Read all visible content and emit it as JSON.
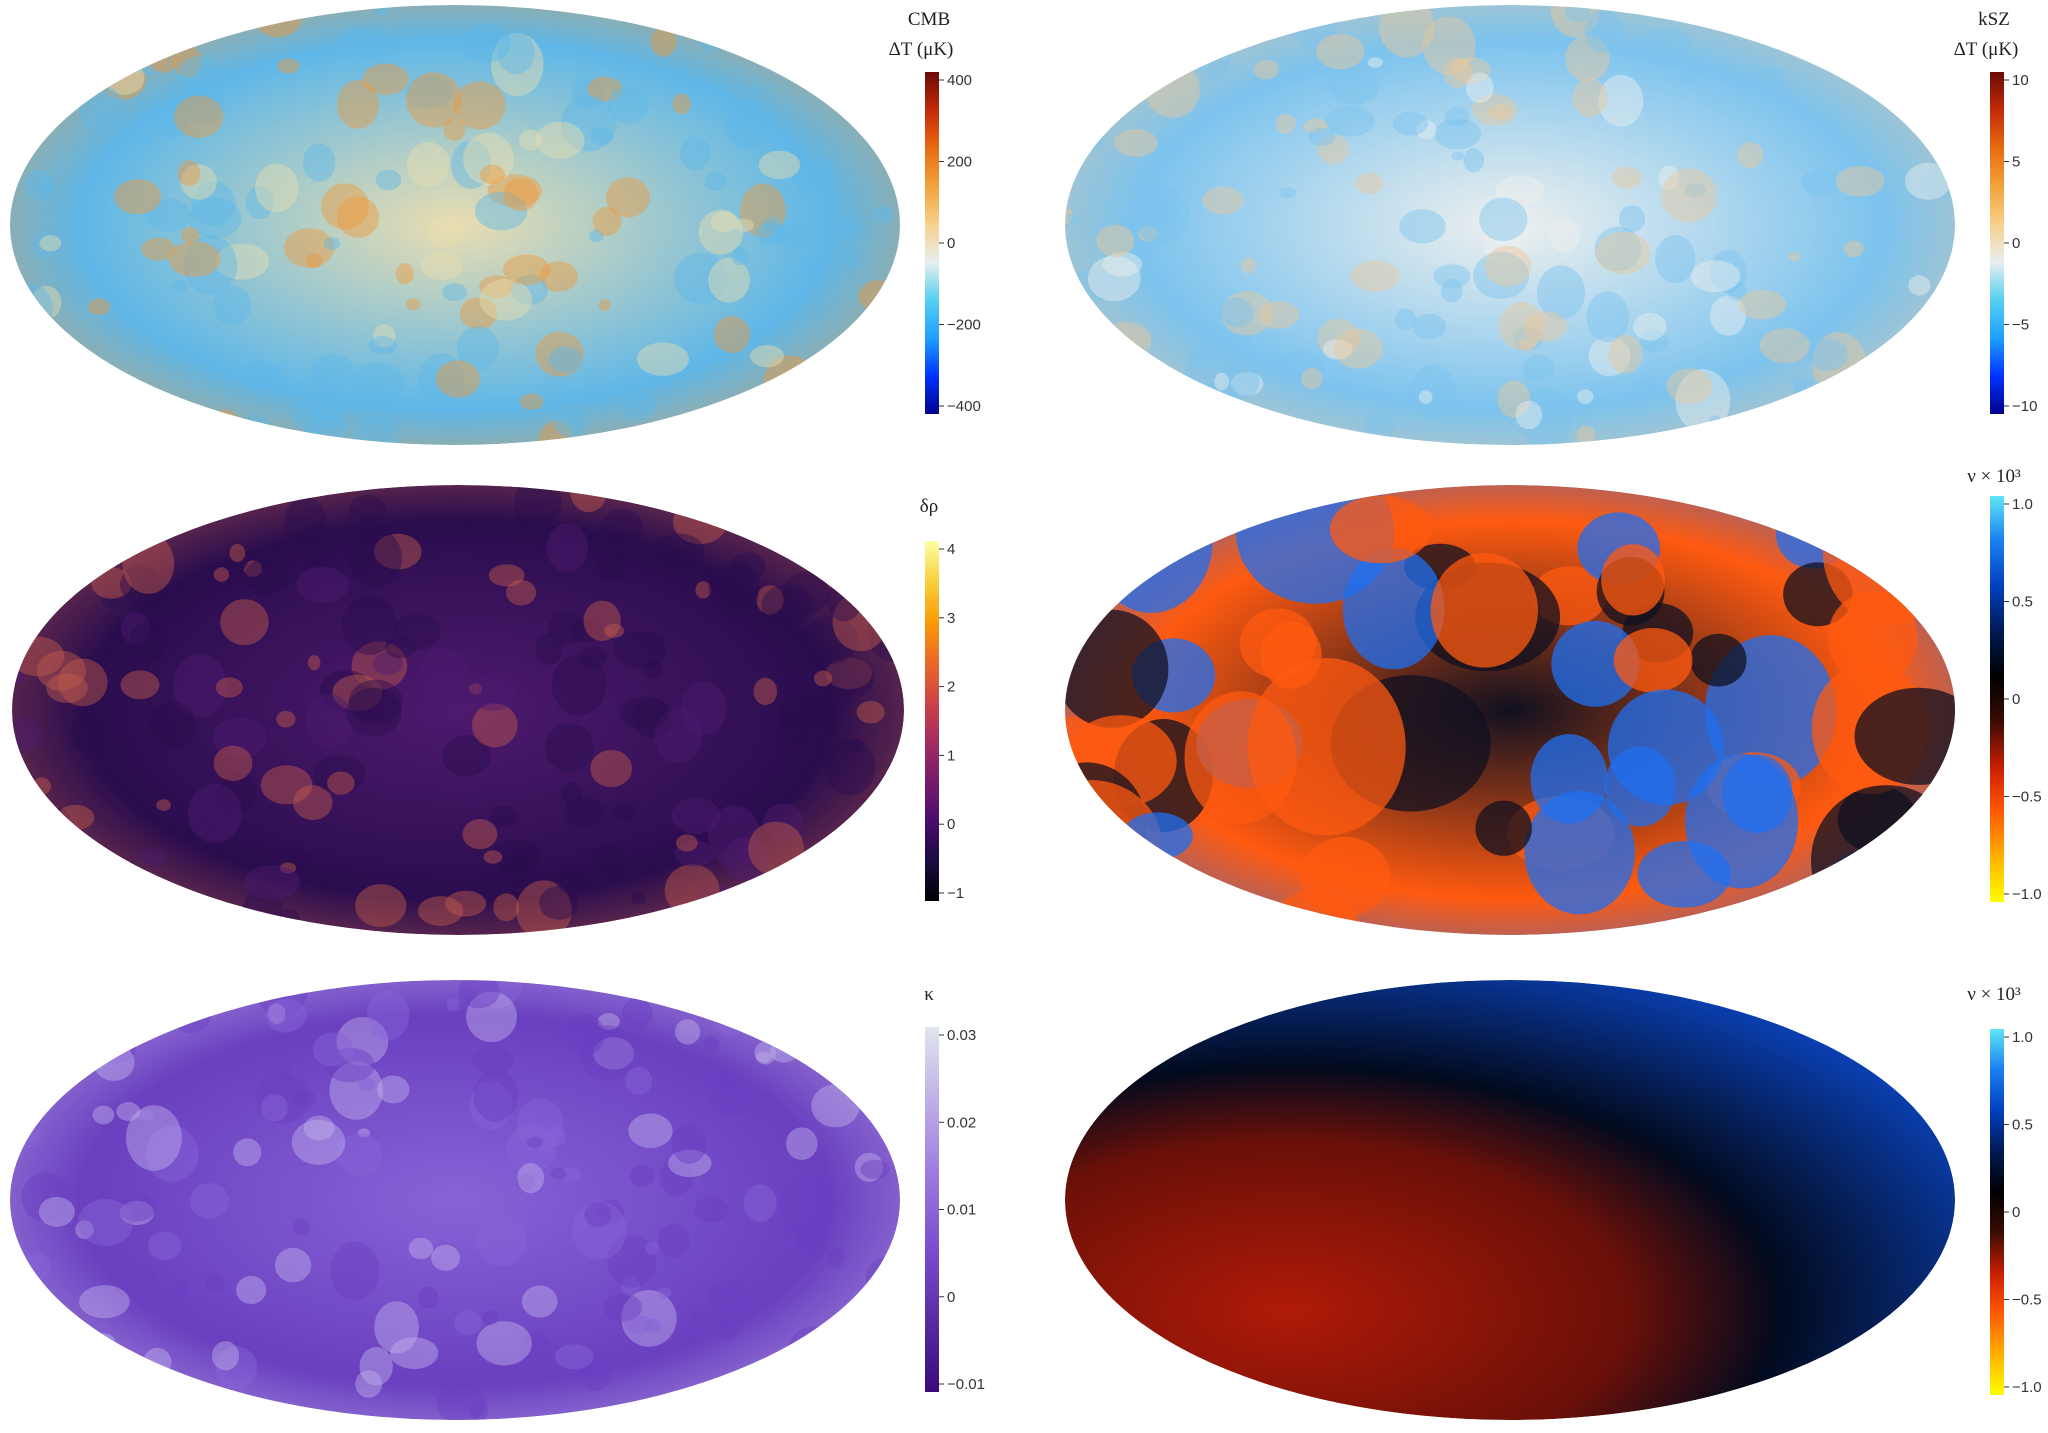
{
  "panels": [
    {
      "id": "cmb",
      "title": "CMB",
      "unit": "ΔT (μK)",
      "ticks": [
        "400",
        "200",
        "0",
        "−200",
        "−400"
      ],
      "colormap": [
        "#00008b",
        "#0033ff",
        "#1ea0ff",
        "#55d0f0",
        "#e8eef0",
        "#f6d08a",
        "#f2a23a",
        "#e86a10",
        "#c22a08",
        "#6a0a05"
      ],
      "texture": {
        "low": "#5fb7e8",
        "mid": "#e9ddb0",
        "high": "#ee9a3c"
      }
    },
    {
      "id": "ksz",
      "title": "kSZ",
      "unit": "ΔT (μK)",
      "ticks": [
        "10",
        "5",
        "0",
        "−5",
        "−10"
      ],
      "colormap": [
        "#00008b",
        "#0033ff",
        "#1ea0ff",
        "#55d0f0",
        "#e8eef0",
        "#f6d08a",
        "#f2a23a",
        "#e86a10",
        "#c22a08",
        "#6a0a05"
      ],
      "texture": {
        "low": "#7cc3ee",
        "mid": "#eef0ee",
        "high": "#ecc89a"
      }
    },
    {
      "id": "density",
      "title": "δρ",
      "unit": "",
      "ticks": [
        "4",
        "3",
        "2",
        "1",
        "0",
        "−1"
      ],
      "colormap": [
        "#000004",
        "#1b0c41",
        "#4a0c6b",
        "#781c6d",
        "#a52c60",
        "#cf4446",
        "#ed6925",
        "#fb9b06",
        "#f7d13d",
        "#fcffa4"
      ],
      "texture": {
        "low": "#2a0d4e",
        "mid": "#4e1a6e",
        "high": "#c35a4a"
      }
    },
    {
      "id": "nu1",
      "title": "ν × 10³",
      "unit": "",
      "ticks": [
        "1.0",
        "0.5",
        "0",
        "−0.5",
        "−1.0"
      ],
      "colormap": [
        "#ffff00",
        "#ffb000",
        "#ff5a00",
        "#c81e00",
        "#3a0c05",
        "#000000",
        "#001a55",
        "#0040c0",
        "#1a7ff0",
        "#5fe6f5"
      ],
      "texture": {
        "low": "#ff5a10",
        "mid": "#101020",
        "high": "#1f6ff0"
      }
    },
    {
      "id": "kappa",
      "title": "κ",
      "unit": "",
      "ticks": [
        "0.03",
        "0.02",
        "0.01",
        "0",
        "−0.01"
      ],
      "colormap": [
        "#3a0a7a",
        "#5a2ca6",
        "#7b4fcf",
        "#9d7be0",
        "#c0afe6",
        "#dfe6ee"
      ],
      "texture": {
        "low": "#6a3fc0",
        "mid": "#8763d6",
        "high": "#c2b2ec"
      }
    },
    {
      "id": "nu2",
      "title": "ν × 10³",
      "unit": "",
      "ticks": [
        "1.0",
        "0.5",
        "0",
        "−0.5",
        "−1.0"
      ],
      "colormap": [
        "#ffff00",
        "#ffb000",
        "#ff5a00",
        "#c81e00",
        "#3a0c05",
        "#000000",
        "#001a55",
        "#0040c0",
        "#1a7ff0",
        "#5fe6f5"
      ],
      "texture": {
        "low": "#b01a08",
        "mid": "#020a1e",
        "high": "#0a3fb0"
      }
    }
  ]
}
